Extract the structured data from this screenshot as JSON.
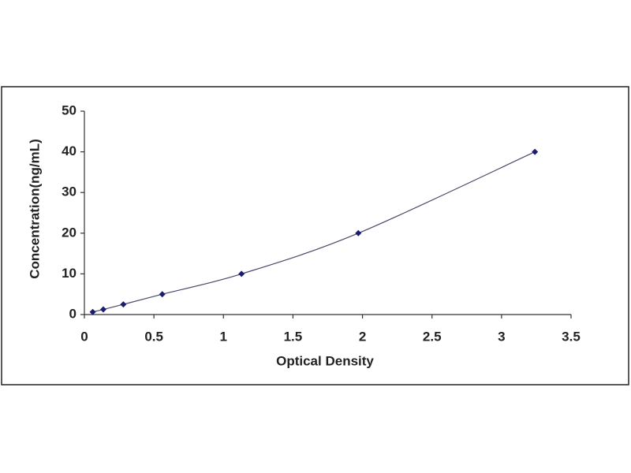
{
  "chart_data": {
    "type": "scatter",
    "x_label": "Optical Density",
    "y_label": "Concentration(ng/mL)",
    "series": [
      {
        "color": "#1c1c70",
        "line_color": "#4a4a6a",
        "x": [
          0.06,
          0.136,
          0.28,
          0.56,
          1.13,
          1.97,
          3.24
        ],
        "values": [
          0.625,
          1.25,
          2.5,
          5,
          10,
          20,
          40
        ]
      }
    ],
    "xlim": [
      0,
      3.5
    ],
    "xticks": [
      0,
      0.5,
      1,
      1.5,
      2,
      2.5,
      3,
      3.5
    ],
    "ylim": [
      0,
      50
    ],
    "yticks": [
      0,
      10,
      20,
      30,
      40,
      50
    ]
  }
}
